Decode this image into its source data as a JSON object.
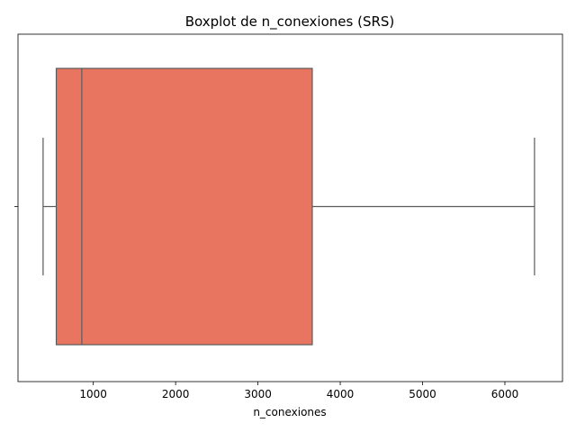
{
  "chart_data": {
    "type": "boxplot",
    "orientation": "horizontal",
    "title": "Boxplot de n_conexiones (SRS)",
    "xlabel": "n_conexiones",
    "ylabel": "",
    "xlim": [
      85,
      6700
    ],
    "x_ticks": [
      1000,
      2000,
      3000,
      4000,
      5000,
      6000
    ],
    "x_tick_labels": [
      "1000",
      "2000",
      "3000",
      "4000",
      "5000",
      "6000"
    ],
    "grid": false,
    "box": {
      "whisker_low": 390,
      "q1": 550,
      "median": 860,
      "q3": 3660,
      "whisker_high": 6360
    },
    "colors": {
      "box_fill": "#e8755f",
      "line": "#5a5a5a",
      "axes": "#000000"
    }
  }
}
